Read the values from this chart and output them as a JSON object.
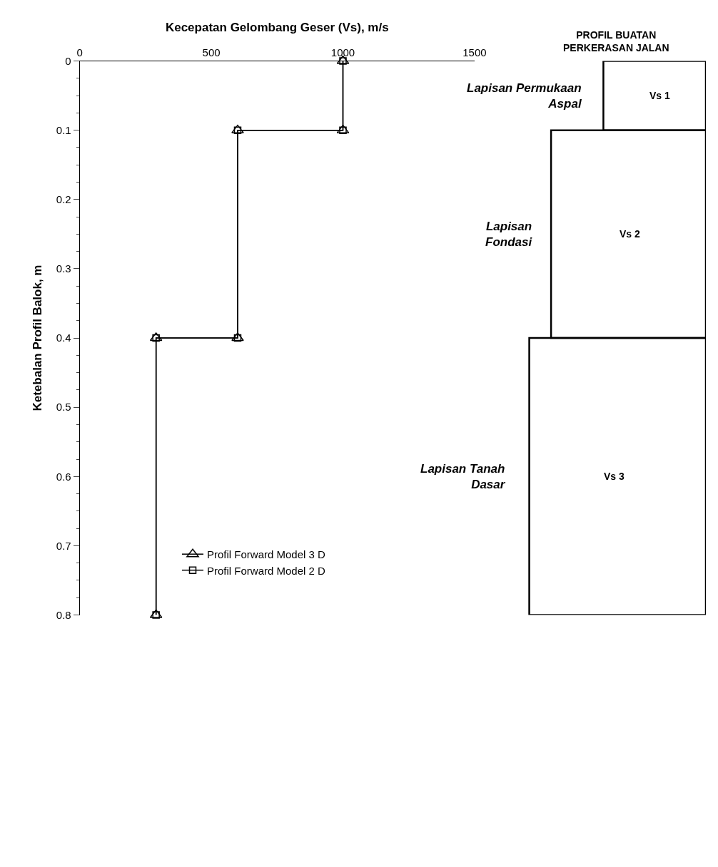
{
  "chart_data": [
    {
      "type": "line",
      "xlabel": "Kecepatan Gelombang Geser (Vs), m/s",
      "ylabel": "Ketebalan Profil Balok, m",
      "xlim": [
        0,
        1500
      ],
      "xticks": [
        0,
        500,
        1000,
        1500
      ],
      "ylim": [
        0.8,
        0
      ],
      "yticks": [
        0,
        0.1,
        0.2,
        0.3,
        0.4,
        0.5,
        0.6,
        0.7,
        0.8
      ],
      "legend": "bottom left",
      "line_style": "solid",
      "series": [
        {
          "name": "Profil Forward Model 3 D",
          "color": "#000000",
          "marker": "triangle",
          "x": [
            1000,
            1000,
            600,
            600,
            290,
            290
          ],
          "values": [
            0,
            0.1,
            0.1,
            0.4,
            0.4,
            0.8
          ]
        },
        {
          "name": "Profil Forward Model 2 D",
          "color": "#000000",
          "marker": "square",
          "x": [
            1000,
            1000,
            600,
            600,
            290,
            290
          ],
          "values": [
            0,
            0.1,
            0.1,
            0.4,
            0.4,
            0.8
          ]
        }
      ]
    },
    {
      "type": "other",
      "title": "PROFIL BUATAN\nPERKERASAN JALAN",
      "annotations": [
        "Lapisan Permukaan\nAspal",
        "Vs 1",
        "Lapisan\nFondasi",
        "Vs 2",
        "Lapisan Tanah\nDasar",
        "Vs 3"
      ]
    }
  ]
}
